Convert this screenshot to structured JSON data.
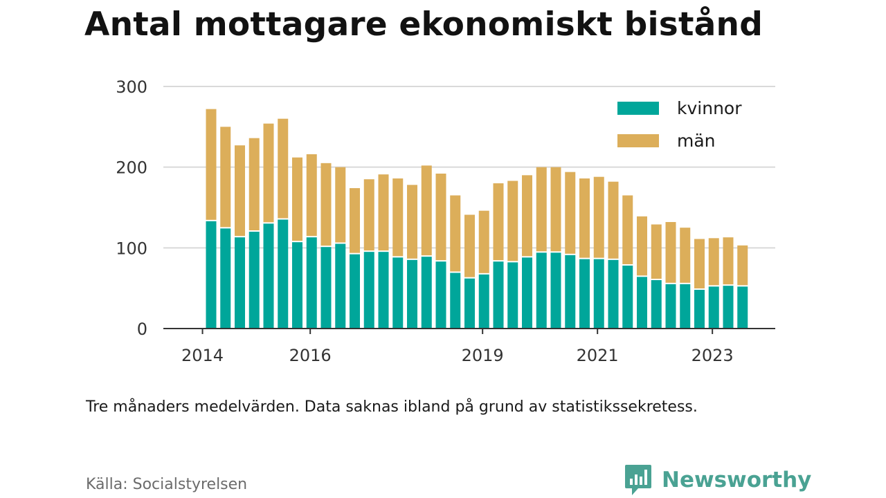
{
  "title": "Antal mottagare ekonomiskt bistånd",
  "note": "Tre månaders medelvärden. Data saknas ibland på grund av statistikssekretess.",
  "source": "Källa: Socialstyrelsen",
  "brand": {
    "name": "Newsworthy",
    "icon": "newsworthy-logo-icon",
    "color": "#4aa293"
  },
  "chart_data": {
    "type": "bar",
    "stacked": true,
    "title": "Antal mottagare ekonomiskt bistånd",
    "xlabel": "",
    "ylabel": "",
    "ylim": [
      0,
      300
    ],
    "yticks": [
      0,
      100,
      200,
      300
    ],
    "grid": true,
    "legend_position": "top-right",
    "x_tick_labels": [
      {
        "label": "2014",
        "at_index": -0.6
      },
      {
        "label": "2016",
        "at_index": 6.9
      },
      {
        "label": "2019",
        "at_index": 18.9
      },
      {
        "label": "2021",
        "at_index": 26.9
      },
      {
        "label": "2023",
        "at_index": 34.9
      }
    ],
    "series": [
      {
        "name": "kvinnor",
        "color": "#00a69a",
        "values": [
          133,
          124,
          113,
          120,
          130,
          135,
          107,
          113,
          101,
          105,
          92,
          95,
          95,
          88,
          85,
          89,
          83,
          69,
          62,
          67,
          83,
          82,
          88,
          94,
          94,
          91,
          86,
          86,
          85,
          78,
          64,
          60,
          55,
          55,
          48,
          52,
          53,
          52
        ]
      },
      {
        "name": "män",
        "color": "#dcae5a",
        "values": [
          139,
          126,
          114,
          116,
          124,
          125,
          105,
          103,
          104,
          95,
          82,
          90,
          96,
          98,
          93,
          113,
          109,
          96,
          79,
          79,
          97,
          101,
          102,
          106,
          106,
          103,
          100,
          102,
          97,
          87,
          75,
          69,
          77,
          70,
          63,
          60,
          60,
          51
        ]
      }
    ]
  }
}
